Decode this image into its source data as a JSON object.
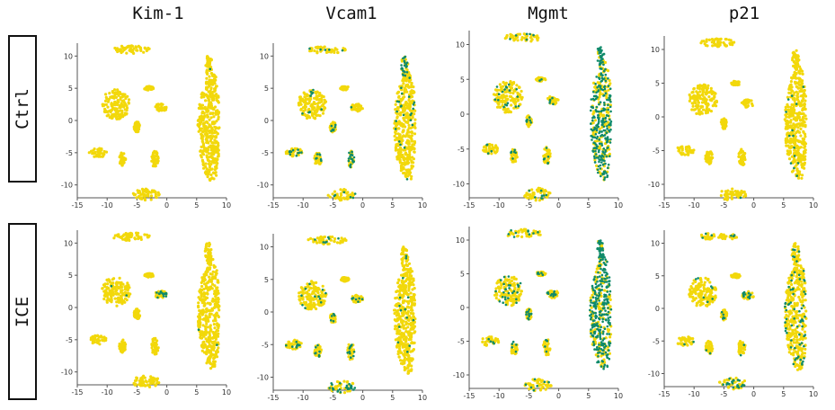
{
  "genes": [
    "Kim-1",
    "Vcam1",
    "Mgmt",
    "p21"
  ],
  "conditions": [
    "Ctrl",
    "ICE"
  ],
  "colors": {
    "low": "#f2d80b",
    "high": "#0f8a6a",
    "axis": "#555555"
  },
  "chart_data": {
    "type": "scatter",
    "layout": "grid 2 rows (conditions) x 4 columns (genes)",
    "xlim": [
      -15,
      10
    ],
    "ylim": [
      -12,
      12
    ],
    "x_ticks": [
      -15,
      -10,
      -5,
      0,
      5,
      10
    ],
    "y_ticks": [
      -10,
      -5,
      0,
      5,
      10
    ],
    "grid": false,
    "color_meaning": "yellow = low expression, green = high expression",
    "clusters": [
      {
        "id": "c1",
        "cx": 7,
        "cy": -1,
        "rx": 1.8,
        "ry": 8.5
      },
      {
        "id": "c2",
        "cx": 7,
        "cy": 8.5,
        "rx": 0.6,
        "ry": 1.6
      },
      {
        "id": "c3",
        "cx": -8.5,
        "cy": 2.5,
        "rx": 2.4,
        "ry": 2.3
      },
      {
        "id": "c4",
        "cx": -6,
        "cy": 11,
        "rx": 3.2,
        "ry": 0.6
      },
      {
        "id": "c5",
        "cx": -3.5,
        "cy": -11.5,
        "rx": 2.3,
        "ry": 0.9
      },
      {
        "id": "c6",
        "cx": -2,
        "cy": -6,
        "rx": 0.6,
        "ry": 1.3
      },
      {
        "id": "c7",
        "cx": -5,
        "cy": -1,
        "rx": 0.5,
        "ry": 0.8
      },
      {
        "id": "c8",
        "cx": -11.5,
        "cy": -5,
        "rx": 1.5,
        "ry": 0.7
      },
      {
        "id": "c9",
        "cx": -7.5,
        "cy": -6,
        "rx": 0.6,
        "ry": 1.0
      },
      {
        "id": "c10",
        "cx": -1,
        "cy": 2,
        "rx": 1.0,
        "ry": 0.6
      },
      {
        "id": "c11",
        "cx": -3,
        "cy": 5,
        "rx": 0.8,
        "ry": 0.3
      }
    ],
    "panels": [
      {
        "condition": "Ctrl",
        "gene": "Kim-1",
        "expression": {
          "c1": 0.0,
          "c2": 0.02,
          "c3": 0.0,
          "c4": 0.01,
          "c5": 0.0,
          "c6": 0.0,
          "c7": 0.0,
          "c8": 0.0,
          "c9": 0.0,
          "c10": 0.0,
          "c11": 0.0
        }
      },
      {
        "condition": "Ctrl",
        "gene": "Vcam1",
        "expression": {
          "c1": 0.04,
          "c2": 0.45,
          "c3": 0.05,
          "c4": 0.06,
          "c5": 0.3,
          "c6": 0.5,
          "c7": 0.15,
          "c8": 0.2,
          "c9": 0.1,
          "c10": 0.05,
          "c11": 0.0
        }
      },
      {
        "condition": "Ctrl",
        "gene": "Mgmt",
        "expression": {
          "c1": 0.55,
          "c2": 0.8,
          "c3": 0.08,
          "c4": 0.1,
          "c5": 0.15,
          "c6": 0.1,
          "c7": 0.2,
          "c8": 0.05,
          "c9": 0.15,
          "c10": 0.1,
          "c11": 0.05
        }
      },
      {
        "condition": "Ctrl",
        "gene": "p21",
        "expression": {
          "c1": 0.02,
          "c2": 0.0,
          "c3": 0.0,
          "c4": 0.0,
          "c5": 0.05,
          "c6": 0.0,
          "c7": 0.0,
          "c8": 0.0,
          "c9": 0.0,
          "c10": 0.0,
          "c11": 0.0
        }
      },
      {
        "condition": "ICE",
        "gene": "Kim-1",
        "expression": {
          "c1": 0.01,
          "c2": 0.0,
          "c3": 0.01,
          "c4": 0.0,
          "c5": 0.0,
          "c6": 0.0,
          "c7": 0.0,
          "c8": 0.0,
          "c9": 0.05,
          "c10": 0.25,
          "c11": 0.0
        }
      },
      {
        "condition": "ICE",
        "gene": "Vcam1",
        "expression": {
          "c1": 0.03,
          "c2": 0.05,
          "c3": 0.05,
          "c4": 0.06,
          "c5": 0.3,
          "c6": 0.2,
          "c7": 0.1,
          "c8": 0.25,
          "c9": 0.1,
          "c10": 0.3,
          "c11": 0.0
        }
      },
      {
        "condition": "ICE",
        "gene": "Mgmt",
        "expression": {
          "c1": 0.6,
          "c2": 0.8,
          "c3": 0.15,
          "c4": 0.12,
          "c5": 0.15,
          "c6": 0.15,
          "c7": 0.2,
          "c8": 0.1,
          "c9": 0.15,
          "c10": 0.3,
          "c11": 0.1
        }
      },
      {
        "condition": "ICE",
        "gene": "p21",
        "expression": {
          "c1": 0.15,
          "c2": 0.1,
          "c3": 0.08,
          "c4": 0.06,
          "c5": 0.3,
          "c6": 0.1,
          "c7": 0.05,
          "c8": 0.05,
          "c9": 0.05,
          "c10": 0.2,
          "c11": 0.0
        }
      }
    ]
  }
}
